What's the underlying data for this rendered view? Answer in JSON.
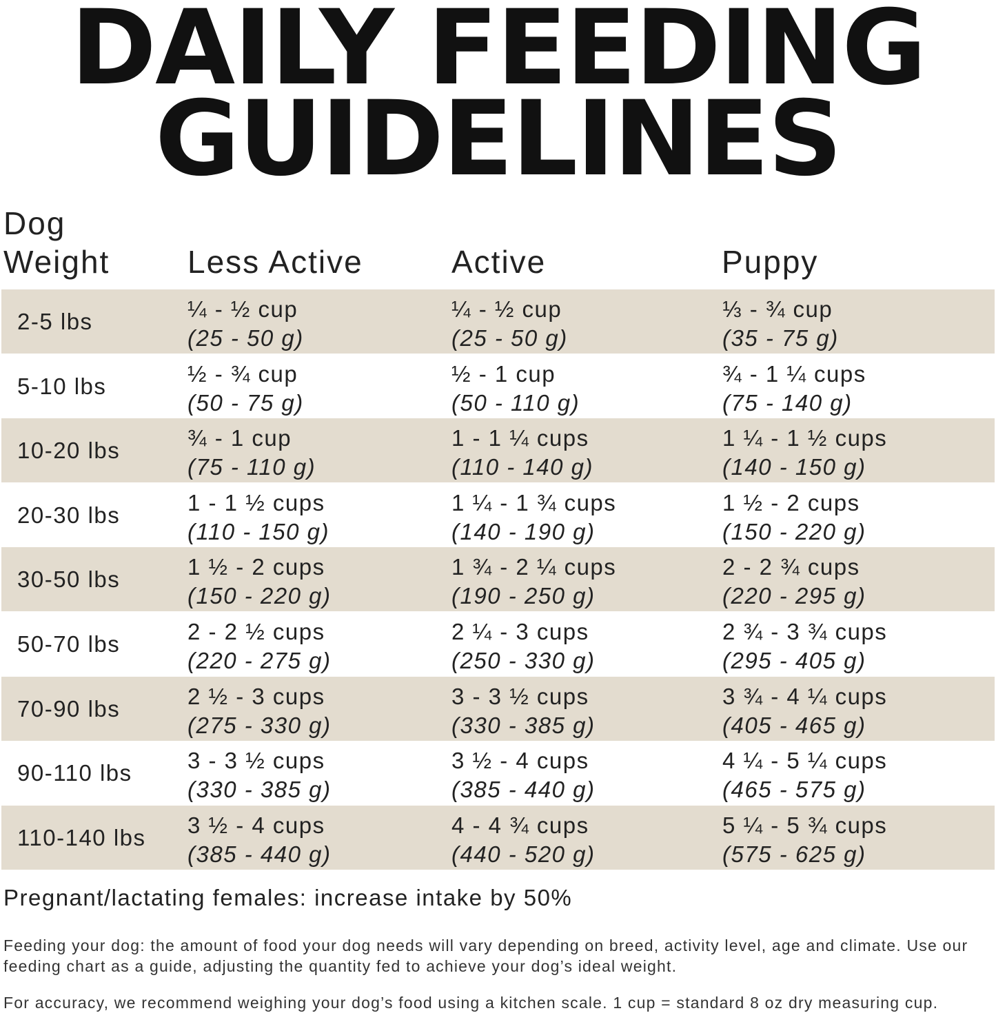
{
  "title": {
    "line1": "DAILY FEEDING",
    "line2": "GUIDELINES"
  },
  "headers": {
    "weight_line1": "Dog",
    "weight_line2": "Weight",
    "less_active": "Less Active",
    "active": "Active",
    "puppy": "Puppy"
  },
  "colors": {
    "row_shade": "#e3dccf"
  },
  "rows": [
    {
      "weight": "2-5 lbs",
      "less_active": {
        "cups": "¼ - ½ cup",
        "grams": "(25 - 50 g)"
      },
      "active": {
        "cups": "¼ - ½ cup",
        "grams": "(25 - 50 g)"
      },
      "puppy": {
        "cups": "⅓ - ¾ cup",
        "grams": "(35 - 75 g)"
      }
    },
    {
      "weight": "5-10 lbs",
      "less_active": {
        "cups": "½ - ¾ cup",
        "grams": "(50 - 75 g)"
      },
      "active": {
        "cups": "½ - 1 cup",
        "grams": "(50 - 110 g)"
      },
      "puppy": {
        "cups": "¾ - 1 ¼ cups",
        "grams": "(75 - 140 g)"
      }
    },
    {
      "weight": "10-20 lbs",
      "less_active": {
        "cups": "¾ - 1 cup",
        "grams": "(75 - 110 g)"
      },
      "active": {
        "cups": "1 - 1 ¼ cups",
        "grams": "(110 - 140 g)"
      },
      "puppy": {
        "cups": "1 ¼ - 1 ½ cups",
        "grams": "(140 - 150 g)"
      }
    },
    {
      "weight": "20-30 lbs",
      "less_active": {
        "cups": "1 - 1 ½ cups",
        "grams": "(110 - 150 g)"
      },
      "active": {
        "cups": "1 ¼ - 1 ¾ cups",
        "grams": "(140 - 190 g)"
      },
      "puppy": {
        "cups": "1 ½ - 2 cups",
        "grams": "(150 - 220 g)"
      }
    },
    {
      "weight": "30-50 lbs",
      "less_active": {
        "cups": "1 ½ - 2 cups",
        "grams": "(150 - 220 g)"
      },
      "active": {
        "cups": "1 ¾ - 2 ¼ cups",
        "grams": "(190 - 250 g)"
      },
      "puppy": {
        "cups": "2 - 2 ¾ cups",
        "grams": "(220 - 295 g)"
      }
    },
    {
      "weight": "50-70 lbs",
      "less_active": {
        "cups": "2 - 2 ½ cups",
        "grams": "(220 - 275 g)"
      },
      "active": {
        "cups": "2 ¼ - 3 cups",
        "grams": "(250 - 330 g)"
      },
      "puppy": {
        "cups": "2 ¾ - 3 ¾ cups",
        "grams": "(295 - 405 g)"
      }
    },
    {
      "weight": "70-90 lbs",
      "less_active": {
        "cups": "2 ½ - 3 cups",
        "grams": "(275 - 330 g)"
      },
      "active": {
        "cups": "3 - 3 ½ cups",
        "grams": "(330 - 385 g)"
      },
      "puppy": {
        "cups": "3 ¾ - 4 ¼ cups",
        "grams": "(405 - 465 g)"
      }
    },
    {
      "weight": "90-110 lbs",
      "less_active": {
        "cups": "3 - 3 ½ cups",
        "grams": "(330 - 385 g)"
      },
      "active": {
        "cups": "3 ½ - 4 cups",
        "grams": "(385 - 440 g)"
      },
      "puppy": {
        "cups": "4 ¼ - 5 ¼ cups",
        "grams": "(465 - 575 g)"
      }
    },
    {
      "weight": "110-140 lbs",
      "less_active": {
        "cups": "3 ½ - 4 cups",
        "grams": "(385 - 440 g)"
      },
      "active": {
        "cups": "4 - 4 ¾ cups",
        "grams": "(440 - 520 g)"
      },
      "puppy": {
        "cups": "5 ¼ - 5 ¾ cups",
        "grams": "(575 - 625 g)"
      }
    }
  ],
  "note": "Pregnant/lactating females: increase intake by 50%",
  "paragraphs": [
    "Feeding your dog: the amount of food your dog needs will vary depending on breed, activity level, age and climate. Use our feeding chart as a guide, adjusting the quantity fed to achieve your dog’s ideal weight.",
    "For accuracy, we recommend weighing your dog’s food using a kitchen scale. 1 cup = standard 8 oz dry measuring cup."
  ]
}
